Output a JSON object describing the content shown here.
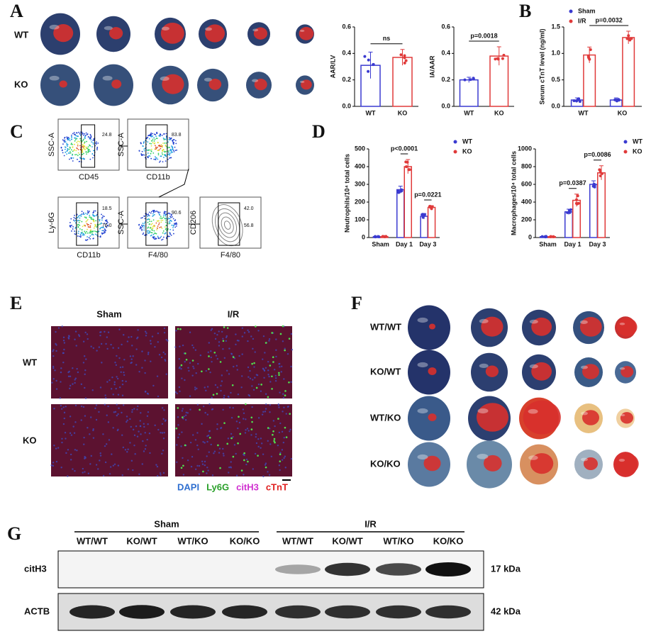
{
  "panel_a": {
    "letter": "A",
    "rows": [
      "WT",
      "KO"
    ]
  },
  "panel_b": {
    "letter": "B"
  },
  "panel_c": {
    "letter": "C",
    "plots": [
      {
        "x_label": "CD45",
        "y_label": "SSC-A",
        "gates": [
          "24.8"
        ]
      },
      {
        "x_label": "CD11b",
        "y_label": "SSC-A",
        "gates": [
          "83.8"
        ]
      },
      {
        "x_label": "CD11b",
        "y_label": "Ly-6G",
        "gates": [
          "18.5",
          "76.0"
        ]
      },
      {
        "x_label": "F4/80",
        "y_label": "SSC-A",
        "gates": [
          "90.6"
        ]
      },
      {
        "x_label": "F4/80",
        "y_label": "CD206",
        "gates": [
          "42.0",
          "56.8"
        ]
      }
    ]
  },
  "panel_d": {
    "letter": "D"
  },
  "chart_data": [
    {
      "type": "bar",
      "y_label": "AAR/LV",
      "categories": [
        "WT",
        "KO"
      ],
      "values": [
        0.31,
        0.37
      ],
      "errors": [
        0.1,
        0.06
      ],
      "colors": [
        "#3a3ad0",
        "#e03a3a"
      ],
      "ylim": [
        0,
        0.6
      ],
      "yticks": [
        {
          "value": 0,
          "label": "0.0"
        },
        0.2,
        0.4,
        0.6
      ],
      "annotations": [
        "ns"
      ]
    },
    {
      "type": "bar",
      "y_label": "IA/AAR",
      "categories": [
        "WT",
        "KO"
      ],
      "values": [
        0.2,
        0.38
      ],
      "errors": [
        0.02,
        0.07
      ],
      "colors": [
        "#3a3ad0",
        "#e03a3a"
      ],
      "ylim": [
        0,
        0.6
      ],
      "yticks": [
        {
          "value": 0,
          "label": "0.0"
        },
        0.2,
        0.4,
        0.6
      ],
      "annotations": [
        "p=0.0018"
      ]
    },
    {
      "type": "bar",
      "y_label": "Serum cTnT level (ng/ml)",
      "categories": [
        "WT",
        "KO"
      ],
      "series": [
        {
          "name": "Sham",
          "color": "#3a3ad0",
          "values": [
            0.12,
            0.12
          ],
          "errors": [
            0.04,
            0.04
          ]
        },
        {
          "name": "I/R",
          "color": "#e03a3a",
          "values": [
            0.97,
            1.3
          ],
          "errors": [
            0.15,
            0.12
          ]
        }
      ],
      "ylim": [
        0,
        1.5
      ],
      "yticks": [
        {
          "value": 0,
          "label": "0.0"
        },
        0.5,
        {
          "value": 1,
          "label": "1.0"
        },
        1.5
      ],
      "legend": "upper left",
      "annotations": [
        "p=0.0032"
      ]
    },
    {
      "type": "bar",
      "y_label": "Neutrophils/10⁴ total cells",
      "categories": [
        "Sham",
        "Day 1",
        "Day 3"
      ],
      "series": [
        {
          "name": "WT",
          "color": "#3a3ad0",
          "values": [
            5,
            270,
            120
          ],
          "errors": [
            2,
            20,
            15
          ]
        },
        {
          "name": "KO",
          "color": "#e03a3a",
          "values": [
            5,
            400,
            170
          ],
          "errors": [
            2,
            40,
            10
          ]
        }
      ],
      "ylim": [
        0,
        500
      ],
      "yticks": [
        0,
        100,
        200,
        300,
        400,
        500
      ],
      "legend": "right",
      "annotations": [
        "p<0.0001",
        "p=0.0221"
      ]
    },
    {
      "type": "bar",
      "y_label": "Macrophages/10⁴ total cells",
      "categories": [
        "Sham",
        "Day 1",
        "Day 3"
      ],
      "series": [
        {
          "name": "WT",
          "color": "#3a3ad0",
          "values": [
            10,
            290,
            600
          ],
          "errors": [
            4,
            30,
            40
          ]
        },
        {
          "name": "KO",
          "color": "#e03a3a",
          "values": [
            10,
            420,
            730
          ],
          "errors": [
            4,
            70,
            80
          ]
        }
      ],
      "ylim": [
        0,
        1000
      ],
      "yticks": [
        0,
        200,
        400,
        600,
        800,
        1000
      ],
      "legend": "right",
      "annotations": [
        "p=0.0387",
        "p=0.0086"
      ]
    }
  ],
  "panel_e": {
    "letter": "E",
    "columns": [
      "Sham",
      "I/R"
    ],
    "rows": [
      "WT",
      "KO"
    ],
    "stains": [
      {
        "name": "DAPI",
        "color": "#2f6fd0"
      },
      {
        "name": "Ly6G",
        "color": "#2aa02a"
      },
      {
        "name": "citH3",
        "color": "#d030d0"
      },
      {
        "name": "cTnT",
        "color": "#e02020"
      }
    ]
  },
  "panel_f": {
    "letter": "F",
    "rows": [
      "WT/WT",
      "KO/WT",
      "WT/KO",
      "KO/KO"
    ]
  },
  "panel_g": {
    "letter": "G",
    "groups": [
      "Sham",
      "I/R"
    ],
    "lanes": [
      "WT/WT",
      "KO/WT",
      "WT/KO",
      "KO/KO",
      "WT/WT",
      "KO/WT",
      "WT/KO",
      "KO/KO"
    ],
    "blots": [
      {
        "name": "citH3",
        "size": "17 kDa"
      },
      {
        "name": "ACTB",
        "size": "42 kDa"
      }
    ]
  }
}
